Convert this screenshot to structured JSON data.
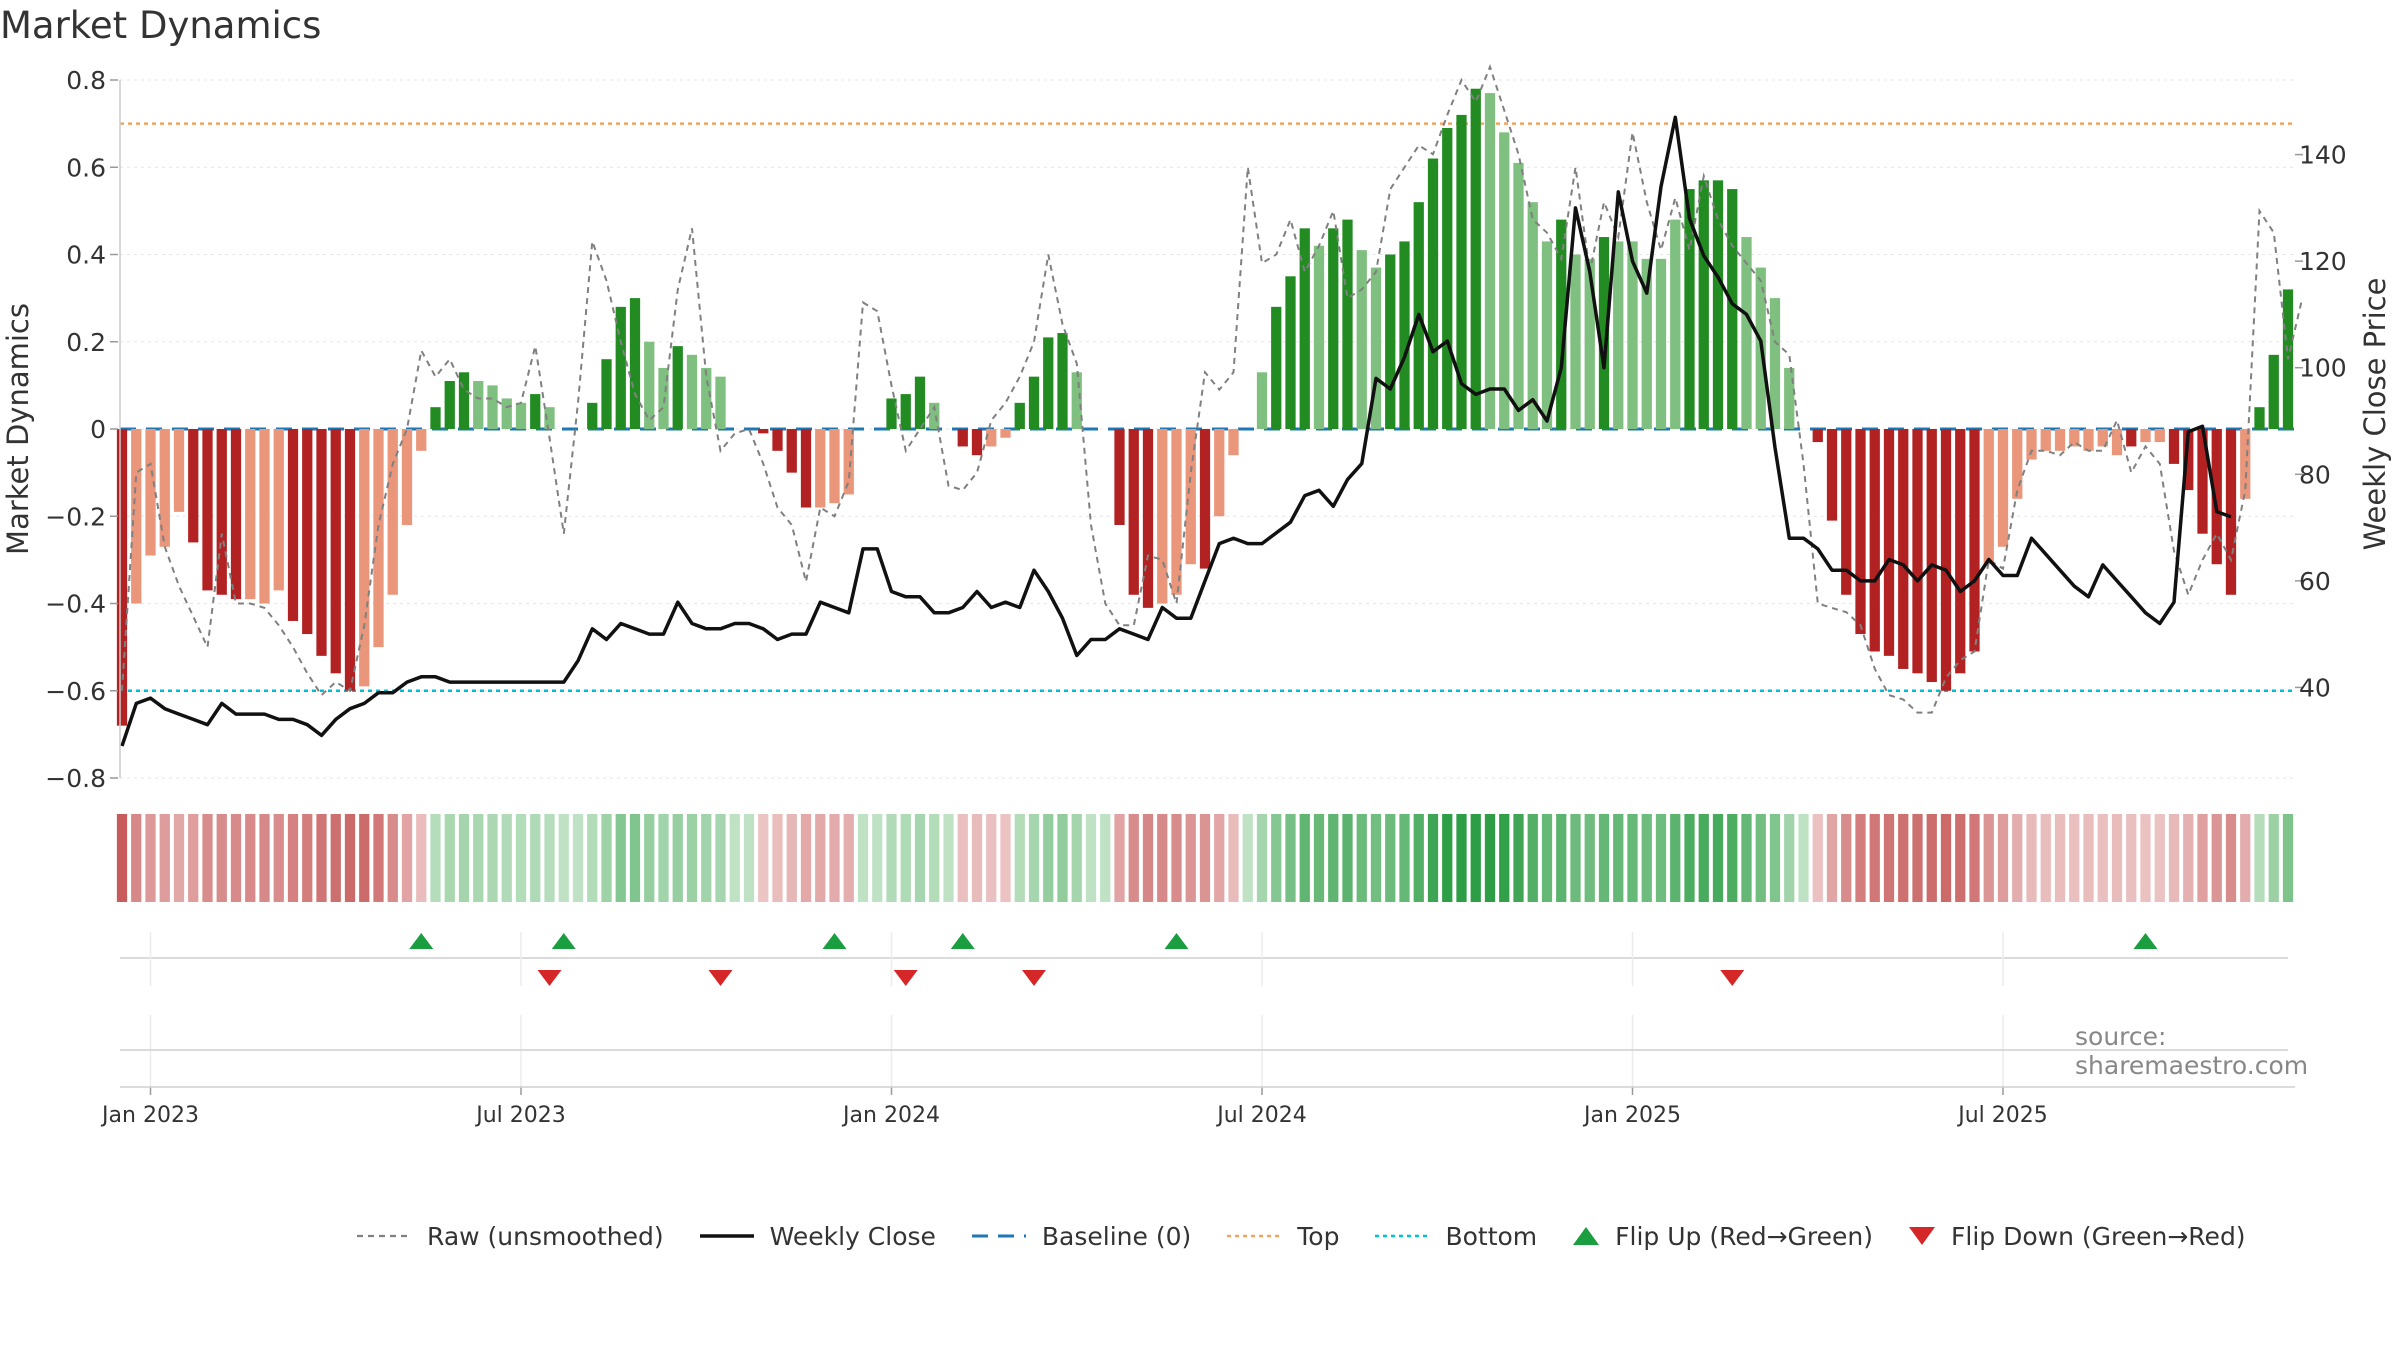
{
  "title": "Market Dynamics",
  "source": "source: sharemaestro.com",
  "colors": {
    "strong_green": "#228b22",
    "light_green": "#7fbf7f",
    "strong_red": "#b22222",
    "light_red": "#e9967a",
    "close_line": "#111111",
    "raw_line": "#808080",
    "baseline": "#1f77b4",
    "top": "#f4a460",
    "bottom": "#00c0d0",
    "flip_up": "#1a9e3f",
    "flip_down": "#d62728"
  },
  "chart_data": {
    "type": "bar",
    "title": "Market Dynamics",
    "ylabel": "Market Dynamics",
    "y2label": "Weekly Close Price",
    "ylim": [
      -0.8,
      0.8
    ],
    "y2lim": [
      23,
      154
    ],
    "yticks": [
      "0.8",
      "0.6",
      "0.4",
      "0.2",
      "0",
      "−0.2",
      "−0.4",
      "−0.6",
      "−0.8"
    ],
    "y2ticks": [
      "140",
      "120",
      "100",
      "80",
      "60",
      "40"
    ],
    "xticks": [
      {
        "label": "Jan 2023",
        "week": 2
      },
      {
        "label": "Jul 2023",
        "week": 28
      },
      {
        "label": "Jan 2024",
        "week": 54
      },
      {
        "label": "Jul 2024",
        "week": 80
      },
      {
        "label": "Jan 2025",
        "week": 106
      },
      {
        "label": "Jul 2025",
        "week": 132
      }
    ],
    "start_week": 0,
    "top": 0.7,
    "bottom": -0.6,
    "baseline": 0,
    "legend_position": "bottom",
    "series": [
      {
        "name": "Market Dynamics",
        "values": [
          -0.68,
          -0.4,
          -0.29,
          -0.27,
          -0.19,
          -0.26,
          -0.37,
          -0.38,
          -0.39,
          -0.39,
          -0.4,
          -0.37,
          -0.44,
          -0.47,
          -0.52,
          -0.56,
          -0.6,
          -0.59,
          -0.5,
          -0.38,
          -0.22,
          -0.05,
          0.05,
          0.11,
          0.13,
          0.11,
          0.1,
          0.07,
          0.06,
          0.08,
          0.05,
          0,
          0,
          0.06,
          0.16,
          0.28,
          0.3,
          0.2,
          0.14,
          0.19,
          0.17,
          0.14,
          0.12,
          0,
          0,
          -0.01,
          -0.05,
          -0.1,
          -0.18,
          -0.18,
          -0.17,
          -0.15,
          0,
          0,
          0.07,
          0.08,
          0.12,
          0.06,
          0,
          -0.04,
          -0.06,
          -0.04,
          -0.02,
          0.06,
          0.12,
          0.21,
          0.22,
          0.13,
          0,
          0,
          -0.22,
          -0.38,
          -0.41,
          -0.4,
          -0.38,
          -0.31,
          -0.32,
          -0.2,
          -0.06,
          0,
          0.13,
          0.28,
          0.35,
          0.46,
          0.42,
          0.46,
          0.48,
          0.41,
          0.37,
          0.4,
          0.43,
          0.52,
          0.62,
          0.69,
          0.72,
          0.78,
          0.77,
          0.68,
          0.61,
          0.52,
          0.43,
          0.48,
          0.4,
          0.39,
          0.44,
          0.43,
          0.43,
          0.39,
          0.39,
          0.48,
          0.55,
          0.57,
          0.57,
          0.55,
          0.44,
          0.37,
          0.3,
          0.14,
          0,
          -0.03,
          -0.21,
          -0.38,
          -0.47,
          -0.51,
          -0.52,
          -0.55,
          -0.56,
          -0.58,
          -0.6,
          -0.56,
          -0.51,
          -0.31,
          -0.27,
          -0.16,
          -0.07,
          -0.05,
          -0.05,
          -0.04,
          -0.05,
          -0.04,
          -0.06,
          -0.04,
          -0.03,
          -0.03,
          -0.08,
          -0.14,
          -0.24,
          -0.31,
          -0.38,
          -0.16,
          0.05,
          0.17,
          0.32
        ]
      },
      {
        "name": "Raw (unsmoothed)",
        "values": [
          -0.6,
          -0.1,
          -0.08,
          -0.27,
          -0.36,
          -0.43,
          -0.5,
          -0.24,
          -0.4,
          -0.4,
          -0.41,
          -0.45,
          -0.5,
          -0.56,
          -0.61,
          -0.58,
          -0.6,
          -0.45,
          -0.22,
          -0.08,
          0.0,
          0.18,
          0.12,
          0.16,
          0.09,
          0.07,
          0.07,
          0.05,
          0.06,
          0.19,
          -0.02,
          -0.24,
          0.06,
          0.43,
          0.34,
          0.2,
          0.08,
          0.02,
          0.05,
          0.32,
          0.46,
          0.12,
          -0.05,
          -0.01,
          0,
          -0.08,
          -0.18,
          -0.22,
          -0.35,
          -0.18,
          -0.2,
          -0.12,
          0.29,
          0.27,
          0.1,
          -0.05,
          0.0,
          0.05,
          -0.13,
          -0.14,
          -0.1,
          0.02,
          0.06,
          0.12,
          0.2,
          0.4,
          0.24,
          0.15,
          -0.22,
          -0.4,
          -0.45,
          -0.45,
          -0.29,
          -0.3,
          -0.4,
          -0.1,
          0.13,
          0.09,
          0.13,
          0.6,
          0.38,
          0.4,
          0.48,
          0.36,
          0.42,
          0.5,
          0.3,
          0.32,
          0.36,
          0.55,
          0.6,
          0.65,
          0.63,
          0.72,
          0.8,
          0.75,
          0.83,
          0.73,
          0.63,
          0.48,
          0.45,
          0.39,
          0.6,
          0.36,
          0.52,
          0.44,
          0.68,
          0.52,
          0.41,
          0.53,
          0.41,
          0.58,
          0.48,
          0.42,
          0.38,
          0.34,
          0.2,
          0.17,
          -0.08,
          -0.4,
          -0.41,
          -0.42,
          -0.45,
          -0.55,
          -0.61,
          -0.62,
          -0.65,
          -0.65,
          -0.57,
          -0.53,
          -0.51,
          -0.3,
          -0.32,
          -0.14,
          -0.05,
          -0.05,
          -0.06,
          -0.03,
          -0.05,
          -0.05,
          0.02,
          -0.1,
          -0.04,
          -0.08,
          -0.28,
          -0.38,
          -0.3,
          -0.24,
          -0.3,
          -0.14,
          0.5,
          0.45,
          0.16,
          0.3
        ]
      },
      {
        "name": "Weekly Close",
        "values": [
          29,
          37,
          38,
          36,
          35,
          34,
          33,
          37,
          35,
          35,
          35,
          34,
          34,
          33,
          31,
          34,
          36,
          37,
          39,
          39,
          41,
          42,
          42,
          41,
          41,
          41,
          41,
          41,
          41,
          41,
          41,
          41,
          45,
          51,
          49,
          52,
          51,
          50,
          50,
          56,
          52,
          51,
          51,
          52,
          52,
          51,
          49,
          50,
          50,
          56,
          55,
          54,
          66,
          66,
          58,
          57,
          57,
          54,
          54,
          55,
          58,
          55,
          56,
          55,
          62,
          58,
          53,
          46,
          49,
          49,
          51,
          50,
          49,
          55,
          53,
          53,
          60,
          67,
          68,
          67,
          67,
          69,
          71,
          76,
          77,
          74,
          79,
          82,
          98,
          96,
          102,
          110,
          103,
          105,
          97,
          95,
          96,
          96,
          92,
          94,
          90,
          100,
          130,
          118,
          100,
          133,
          120,
          114,
          134,
          147,
          128,
          121,
          117,
          112,
          110,
          105,
          85,
          68,
          68,
          66,
          62,
          62,
          60,
          60,
          64,
          63,
          60,
          63,
          62,
          58,
          60,
          64,
          61,
          61,
          68,
          65,
          62,
          59,
          57,
          63,
          60,
          57,
          54,
          52,
          56,
          88,
          89,
          73,
          72
        ]
      }
    ],
    "bar_shades": [
      "strong",
      "light",
      "light",
      "light",
      "light",
      "strong",
      "strong",
      "strong",
      "strong",
      "light",
      "light",
      "light",
      "strong",
      "strong",
      "strong",
      "strong",
      "strong",
      "light",
      "light",
      "light",
      "light",
      "light",
      "strong",
      "strong",
      "strong",
      "light",
      "light",
      "light",
      "light",
      "strong",
      "light",
      "light",
      "light",
      "strong",
      "strong",
      "strong",
      "strong",
      "light",
      "light",
      "strong",
      "light",
      "light",
      "light",
      "light",
      "light",
      "strong",
      "strong",
      "strong",
      "strong",
      "light",
      "light",
      "light",
      "light",
      "light",
      "strong",
      "strong",
      "strong",
      "light",
      "light",
      "strong",
      "strong",
      "light",
      "light",
      "strong",
      "strong",
      "strong",
      "strong",
      "light",
      "light",
      "light",
      "strong",
      "strong",
      "strong",
      "light",
      "light",
      "light",
      "strong",
      "light",
      "light",
      "light",
      "light",
      "strong",
      "strong",
      "strong",
      "light",
      "strong",
      "strong",
      "light",
      "light",
      "strong",
      "strong",
      "strong",
      "strong",
      "strong",
      "strong",
      "strong",
      "light",
      "light",
      "light",
      "light",
      "light",
      "strong",
      "light",
      "light",
      "strong",
      "light",
      "light",
      "light",
      "light",
      "light",
      "strong",
      "strong",
      "strong",
      "strong",
      "light",
      "light",
      "light",
      "light",
      "light",
      "strong",
      "strong",
      "strong",
      "strong",
      "strong",
      "strong",
      "strong",
      "strong",
      "strong",
      "strong",
      "strong",
      "strong",
      "light",
      "light",
      "light",
      "light",
      "light",
      "light",
      "light",
      "light",
      "light",
      "light",
      "strong",
      "light",
      "light",
      "strong",
      "strong",
      "strong",
      "strong",
      "strong",
      "light",
      "strong",
      "strong",
      "strong"
    ],
    "flips": {
      "up_weeks": [
        21,
        31,
        50,
        59,
        74,
        142
      ],
      "down_weeks": [
        30,
        42,
        55,
        64,
        113
      ]
    }
  },
  "legend": {
    "raw": "Raw (unsmoothed)",
    "close": "Weekly Close",
    "baseline": "Baseline (0)",
    "top": "Top",
    "bottom": "Bottom",
    "flip_up": "Flip Up (Red→Green)",
    "flip_down": "Flip Down (Green→Red)"
  }
}
